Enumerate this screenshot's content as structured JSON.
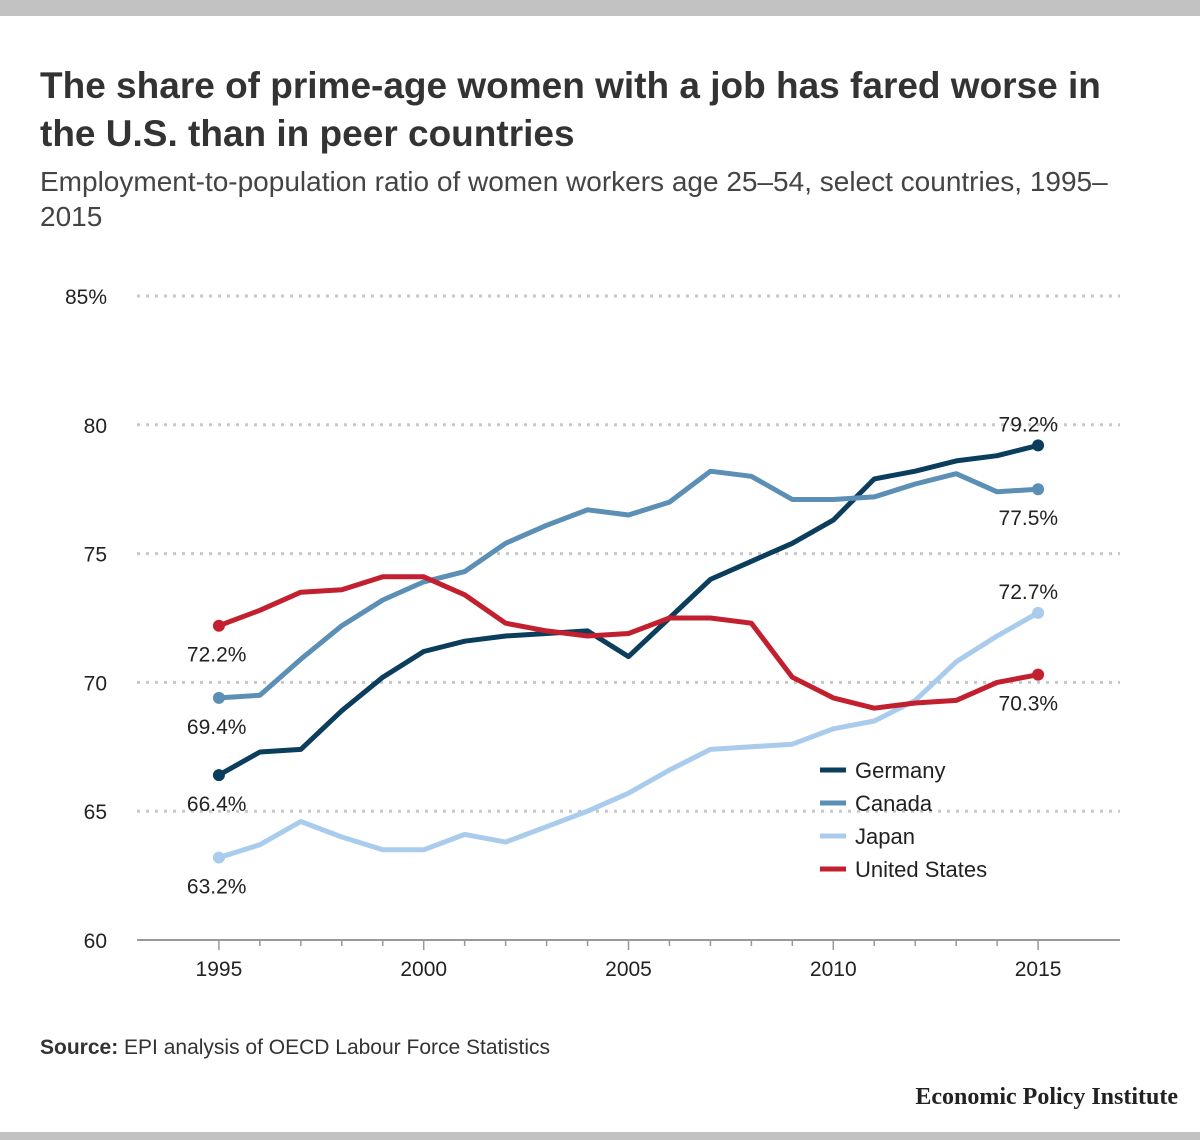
{
  "header": {
    "title": "The share of prime-age women with a job has fared worse in the U.S. than in peer countries",
    "subtitle": "Employment-to-population ratio of women workers age 25–54, select countries, 1995–2015"
  },
  "footer": {
    "source_label": "Source:",
    "source_text": " EPI analysis of OECD Labour Force Statistics",
    "organization": "Economic Policy Institute"
  },
  "chart_data": {
    "type": "line",
    "title": "The share of prime-age women with a job has fared worse in the U.S. than in peer countries",
    "subtitle": "Employment-to-population ratio of women workers age 25–54, select countries, 1995–2015",
    "xlabel": "",
    "ylabel": "",
    "x": [
      1995,
      1996,
      1997,
      1998,
      1999,
      2000,
      2001,
      2002,
      2003,
      2004,
      2005,
      2006,
      2007,
      2008,
      2009,
      2010,
      2011,
      2012,
      2013,
      2014,
      2015
    ],
    "xlim": [
      1993,
      2017
    ],
    "ylim": [
      60,
      85
    ],
    "x_ticks": [
      {
        "value": 1995,
        "label": "1995"
      },
      {
        "value": 2000,
        "label": "2000"
      },
      {
        "value": 2005,
        "label": "2005"
      },
      {
        "value": 2010,
        "label": "2010"
      },
      {
        "value": 2015,
        "label": "2015"
      }
    ],
    "y_ticks": [
      {
        "value": 60,
        "label": "60"
      },
      {
        "value": 65,
        "label": "65"
      },
      {
        "value": 70,
        "label": "70"
      },
      {
        "value": 75,
        "label": "75"
      },
      {
        "value": 80,
        "label": "80"
      },
      {
        "value": 85,
        "label": "85%"
      }
    ],
    "grid": true,
    "legend_position": "bottom-right",
    "series": [
      {
        "name": "Germany",
        "color": "#0b3d5c",
        "values": [
          66.4,
          67.3,
          67.4,
          68.9,
          70.2,
          71.2,
          71.6,
          71.8,
          71.9,
          72.0,
          71.0,
          72.5,
          74.0,
          74.7,
          75.4,
          76.3,
          77.9,
          78.2,
          78.6,
          78.8,
          79.2
        ],
        "labels": [
          {
            "year": 1995,
            "text": "66.4%",
            "anchor": "start",
            "pos": "below"
          },
          {
            "year": 2015,
            "text": "79.2%",
            "anchor": "end",
            "pos": "above"
          }
        ]
      },
      {
        "name": "Canada",
        "color": "#5b8fb5",
        "values": [
          69.4,
          69.5,
          70.9,
          72.2,
          73.2,
          73.9,
          74.3,
          75.4,
          76.1,
          76.7,
          76.5,
          77.0,
          78.2,
          78.0,
          77.1,
          77.1,
          77.2,
          77.7,
          78.1,
          77.4,
          77.5
        ],
        "labels": [
          {
            "year": 1995,
            "text": "69.4%",
            "anchor": "start",
            "pos": "below"
          },
          {
            "year": 2015,
            "text": "77.5%",
            "anchor": "end",
            "pos": "below"
          }
        ]
      },
      {
        "name": "Japan",
        "color": "#a9ccec",
        "values": [
          63.2,
          63.7,
          64.6,
          64.0,
          63.5,
          63.5,
          64.1,
          63.8,
          64.4,
          65.0,
          65.7,
          66.6,
          67.4,
          67.5,
          67.6,
          68.2,
          68.5,
          69.3,
          70.8,
          71.8,
          72.7
        ],
        "labels": [
          {
            "year": 1995,
            "text": "63.2%",
            "anchor": "start",
            "pos": "below"
          },
          {
            "year": 2015,
            "text": "72.7%",
            "anchor": "end",
            "pos": "above"
          }
        ]
      },
      {
        "name": "United States",
        "color": "#c2202f",
        "values": [
          72.2,
          72.8,
          73.5,
          73.6,
          74.1,
          74.1,
          73.4,
          72.3,
          72.0,
          71.8,
          71.9,
          72.5,
          72.5,
          72.3,
          70.2,
          69.4,
          69.0,
          69.2,
          69.3,
          70.0,
          70.3
        ],
        "labels": [
          {
            "year": 1995,
            "text": "72.2%",
            "anchor": "start",
            "pos": "below"
          },
          {
            "year": 2015,
            "text": "70.3%",
            "anchor": "end",
            "pos": "below"
          }
        ]
      }
    ]
  }
}
